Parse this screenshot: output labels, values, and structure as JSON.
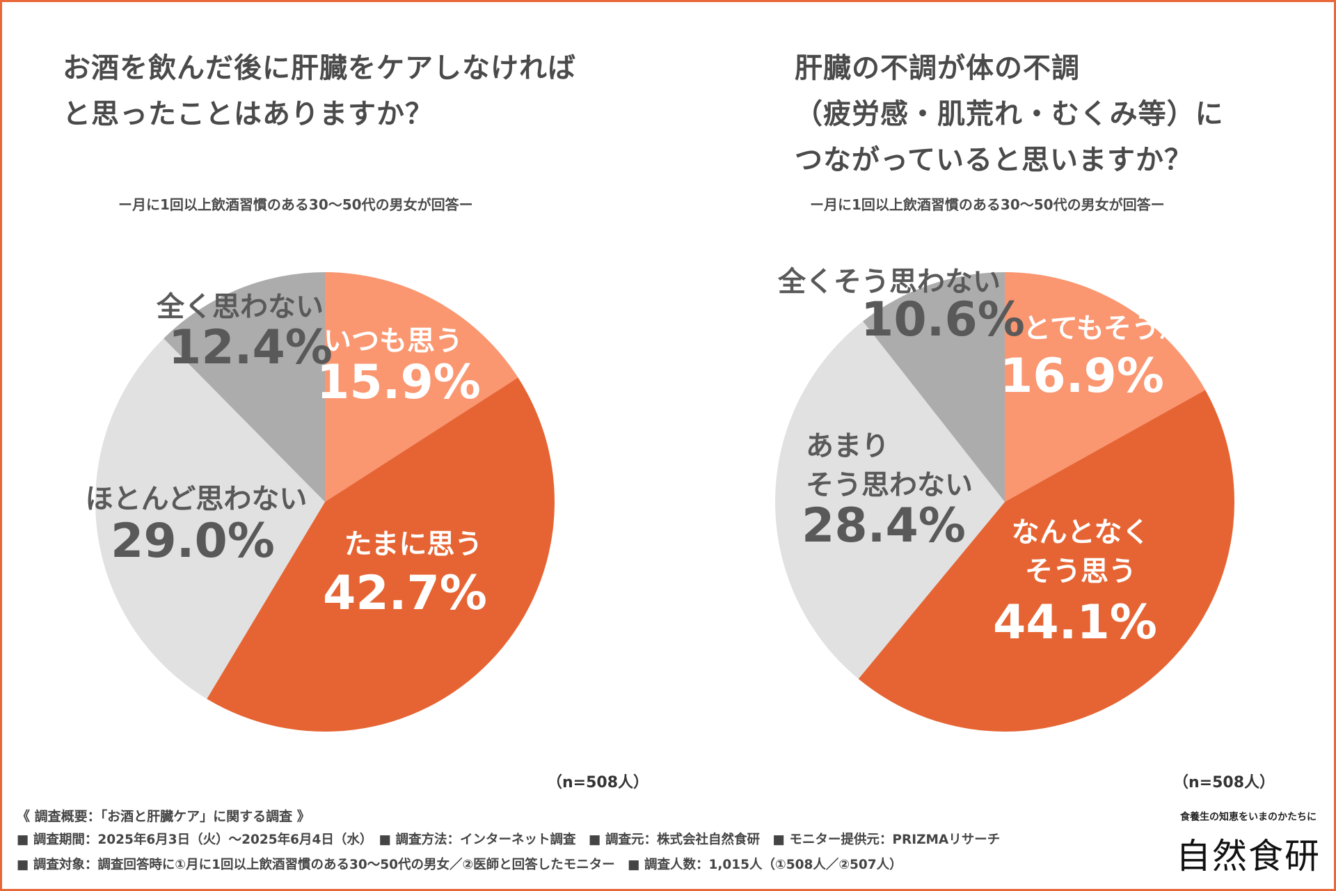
{
  "chart_data": [
    {
      "type": "pie",
      "title": "お酒を飲んだ後に肝臓をケアしなければ\nと思ったことはありますか？",
      "title_lines": [
        "お酒を飲んだ後に肝臓をケアしなければ",
        "と思ったことはありますか？"
      ],
      "subtitle": "ー月に1回以上飲酒習慣のある30〜50代の男女が回答ー",
      "n_label": "（n=508人）",
      "slices": [
        {
          "label": "いつも思う",
          "value": 15.9,
          "display": "15.9%",
          "color": "#fa9670"
        },
        {
          "label": "たまに思う",
          "value": 42.7,
          "display": "42.7%",
          "color": "#e66433"
        },
        {
          "label": "ほとんど思わない",
          "value": 29.0,
          "display": "29.0%",
          "color": "#e1e1e1"
        },
        {
          "label": "全く思わない",
          "value": 12.4,
          "display": "12.4%",
          "color": "#acacac"
        }
      ]
    },
    {
      "type": "pie",
      "title": "肝臓の不調が体の不調\n（疲労感・肌荒れ・むくみ等）に\nつながっていると思いますか？",
      "title_lines": [
        "肝臓の不調が体の不調",
        "（疲労感・肌荒れ・むくみ等）に",
        "つながっていると思いますか？"
      ],
      "subtitle": "ー月に1回以上飲酒習慣のある30〜50代の男女が回答ー",
      "n_label": "（n=508人）",
      "slices": [
        {
          "label": "とてもそう思う",
          "value": 16.9,
          "display": "16.9%",
          "color": "#fa9670"
        },
        {
          "label": "なんとなく\nそう思う",
          "label_lines": [
            "なんとなく",
            "そう思う"
          ],
          "value": 44.1,
          "display": "44.1%",
          "color": "#e66433"
        },
        {
          "label": "あまり\nそう思わない",
          "label_lines": [
            "あまり",
            "そう思わない"
          ],
          "value": 28.4,
          "display": "28.4%",
          "color": "#e1e1e1"
        },
        {
          "label": "全くそう思わない",
          "value": 10.6,
          "display": "10.6%",
          "color": "#acacac"
        }
      ]
    }
  ],
  "footer": {
    "heading": "《 調査概要：「お酒と肝臓ケア」に関する調査 》",
    "line1": "■ 調査期間：2025年6月3日（火）〜2025年6月4日（水）　■ 調査方法：インターネット調査　■ 調査元：株式会社自然食研　■ モニター提供元：PRIZMAリサーチ",
    "line2": "■ 調査対象：調査回答時に①月に1回以上飲酒習慣のある30〜50代の男女／②医師と回答したモニター　■ 調査人数：1,015人（①508人／②507人）"
  },
  "brand": {
    "tagline": "食養生の知恵をいまのかたちに",
    "name": "自然食研"
  },
  "colors": {
    "frame": "#e8683a",
    "text_dark": "#4a4a4a",
    "text_gray": "#595959",
    "white": "#ffffff"
  }
}
